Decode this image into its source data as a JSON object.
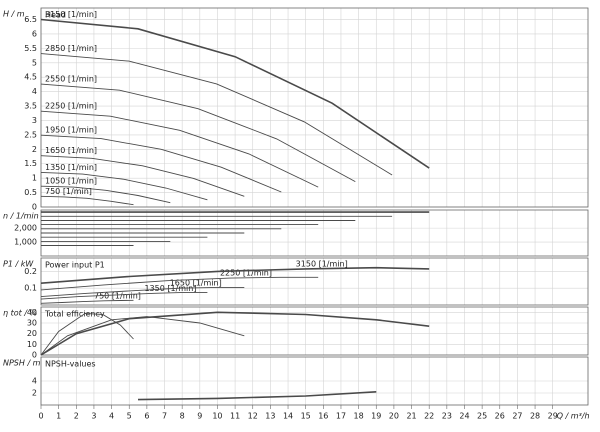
{
  "chart_data": [
    {
      "type": "line",
      "ylabel": "H / m",
      "title": "Head",
      "color": "#4a4a4a",
      "ylim": [
        0,
        6.9
      ],
      "yticks": [
        0,
        0.5,
        1,
        1.5,
        2,
        2.5,
        3,
        3.5,
        4,
        4.5,
        5,
        5.5,
        6,
        6.5
      ],
      "series": [
        {
          "name": "750 [1/min]",
          "x": [
            0,
            1.31,
            2.62,
            3.93,
            5.24
          ],
          "values": [
            0.37,
            0.35,
            0.3,
            0.2,
            0.08
          ]
        },
        {
          "name": "1050 [1/min]",
          "x": [
            0,
            1.83,
            3.67,
            5.5,
            7.33
          ],
          "values": [
            0.72,
            0.69,
            0.58,
            0.4,
            0.15
          ]
        },
        {
          "name": "1350 [1/min]",
          "x": [
            0,
            2.36,
            4.71,
            7.07,
            9.43
          ],
          "values": [
            1.2,
            1.14,
            0.96,
            0.66,
            0.25
          ]
        },
        {
          "name": "1650 [1/min]",
          "x": [
            0,
            2.88,
            5.76,
            8.64,
            11.52
          ],
          "values": [
            1.78,
            1.69,
            1.43,
            0.99,
            0.37
          ]
        },
        {
          "name": "1950 [1/min]",
          "x": [
            0,
            3.4,
            6.81,
            10.21,
            13.62
          ],
          "values": [
            2.49,
            2.37,
            2.0,
            1.38,
            0.52
          ]
        },
        {
          "name": "2250 [1/min]",
          "x": [
            0,
            3.93,
            7.86,
            11.78,
            15.71
          ],
          "values": [
            3.32,
            3.15,
            2.66,
            1.84,
            0.69
          ]
        },
        {
          "name": "2550 [1/min]",
          "x": [
            0,
            4.45,
            8.9,
            13.36,
            17.81
          ],
          "values": [
            4.26,
            4.05,
            3.41,
            2.36,
            0.88
          ]
        },
        {
          "name": "2850 [1/min]",
          "x": [
            0,
            4.98,
            9.95,
            14.93,
            19.9
          ],
          "values": [
            5.32,
            5.06,
            4.27,
            2.95,
            1.11
          ]
        },
        {
          "name": "3150 [1/min]",
          "x": [
            0,
            5.5,
            11,
            16.5,
            22
          ],
          "values": [
            6.5,
            6.18,
            5.21,
            3.6,
            1.35
          ]
        }
      ]
    },
    {
      "type": "line",
      "ylabel": "n / 1/min",
      "color": "#4a4a4a",
      "ylim": [
        0,
        3300
      ],
      "yticks": [
        {
          "value": 1000,
          "label": "1,000"
        },
        {
          "value": 2000,
          "label": "2,000"
        }
      ],
      "series": [
        {
          "x": [
            0,
            5.24
          ],
          "values": [
            750,
            750
          ]
        },
        {
          "x": [
            0,
            7.33
          ],
          "values": [
            1050,
            1050
          ]
        },
        {
          "x": [
            0,
            9.43
          ],
          "values": [
            1350,
            1350
          ]
        },
        {
          "x": [
            0,
            11.52
          ],
          "values": [
            1650,
            1650
          ]
        },
        {
          "x": [
            0,
            13.62
          ],
          "values": [
            1950,
            1950
          ]
        },
        {
          "x": [
            0,
            15.71
          ],
          "values": [
            2250,
            2250
          ]
        },
        {
          "x": [
            0,
            17.81
          ],
          "values": [
            2550,
            2550
          ]
        },
        {
          "x": [
            0,
            19.9
          ],
          "values": [
            2850,
            2850
          ]
        },
        {
          "x": [
            0,
            22
          ],
          "values": [
            3150,
            3150
          ]
        }
      ]
    },
    {
      "type": "line",
      "ylabel": "P1 / kW",
      "title": "Power input P1",
      "color": "#4a4a4a",
      "ylim": [
        0,
        0.28
      ],
      "yticks": [
        0.1,
        0.2
      ],
      "series": [
        {
          "name": "750 [1/min]",
          "x": [
            0,
            1.19,
            2.38,
            3.57,
            4.52,
            5.24
          ],
          "values": [
            0.01,
            0.015,
            0.02,
            0.025,
            0.027,
            0.028
          ]
        },
        {
          "name": "1350 [1/min]",
          "x": [
            0,
            2.14,
            4.29,
            6.43,
            8.14,
            9.43
          ],
          "values": [
            0.035,
            0.05,
            0.06,
            0.07,
            0.075,
            0.075
          ]
        },
        {
          "name": "1650 [1/min]",
          "x": [
            0,
            2.62,
            5.24,
            7.86,
            9.95,
            11.52
          ],
          "values": [
            0.05,
            0.07,
            0.085,
            0.1,
            0.105,
            0.105
          ]
        },
        {
          "name": "2250 [1/min]",
          "x": [
            0,
            3.57,
            7.14,
            10.71,
            13.57,
            15.71
          ],
          "values": [
            0.09,
            0.12,
            0.145,
            0.16,
            0.165,
            0.165
          ]
        },
        {
          "name": "3150 [1/min]",
          "x": [
            0,
            5,
            10,
            15,
            19,
            22
          ],
          "values": [
            0.13,
            0.17,
            0.2,
            0.215,
            0.222,
            0.215
          ]
        }
      ]
    },
    {
      "type": "line",
      "ylabel": "η tot / %",
      "title": "Total efficiency",
      "color": "#4a4a4a",
      "ylim": [
        0,
        45
      ],
      "yticks": [
        0,
        10,
        20,
        30,
        40
      ],
      "series": [
        {
          "x": [
            0,
            1,
            2.5,
            3.5,
            4.5,
            5.24
          ],
          "values": [
            0,
            22,
            39,
            38,
            28,
            15
          ]
        },
        {
          "x": [
            0,
            1.5,
            4,
            6,
            9,
            11.52
          ],
          "values": [
            0,
            18,
            33,
            36,
            30,
            18
          ]
        },
        {
          "x": [
            0,
            2,
            5,
            10,
            15,
            19,
            22
          ],
          "values": [
            0,
            20,
            34,
            40,
            38,
            33,
            27
          ]
        }
      ]
    },
    {
      "type": "line",
      "ylabel": "NPSH / m",
      "title": "NPSH-values",
      "color": "#4a4a4a",
      "ylim": [
        0,
        8
      ],
      "yticks": [
        2,
        4
      ],
      "xlabel": "Q / m³/h",
      "xlim": [
        0,
        31
      ],
      "xticks": [
        0,
        1,
        2,
        3,
        4,
        5,
        6,
        7,
        8,
        9,
        10,
        11,
        12,
        13,
        14,
        15,
        16,
        17,
        18,
        19,
        20,
        21,
        22,
        23,
        24,
        25,
        26,
        27,
        28,
        29
      ],
      "series": [
        {
          "x": [
            5.5,
            10,
            15,
            19
          ],
          "values": [
            0.9,
            1.1,
            1.5,
            2.2
          ]
        }
      ]
    }
  ]
}
